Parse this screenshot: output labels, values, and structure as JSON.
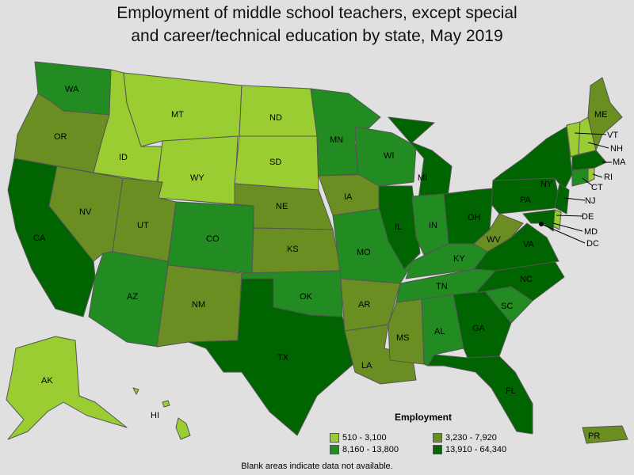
{
  "title_line1": "Employment of middle school teachers, except special",
  "title_line2": "and career/technical education by state, May 2019",
  "legend": {
    "title": "Employment",
    "items": [
      {
        "label": "510 - 3,100",
        "color": "#9acd32"
      },
      {
        "label": "3,230 - 7,920",
        "color": "#6b8e23"
      },
      {
        "label": "8,160 - 13,800",
        "color": "#228b22"
      },
      {
        "label": "13,910 - 64,340",
        "color": "#006400"
      }
    ]
  },
  "note": "Blank areas indicate data not available.",
  "states": {
    "WA": "WA",
    "OR": "OR",
    "CA": "CA",
    "ID": "ID",
    "NV": "NV",
    "MT": "MT",
    "WY": "WY",
    "UT": "UT",
    "AZ": "AZ",
    "CO": "CO",
    "NM": "NM",
    "ND": "ND",
    "SD": "SD",
    "NE": "NE",
    "KS": "KS",
    "OK": "OK",
    "TX": "TX",
    "MN": "MN",
    "IA": "IA",
    "MO": "MO",
    "AR": "AR",
    "LA": "LA",
    "WI": "WI",
    "IL": "IL",
    "MI": "MI",
    "IN": "IN",
    "OH": "OH",
    "KY": "KY",
    "TN": "TN",
    "MS": "MS",
    "AL": "AL",
    "GA": "GA",
    "FL": "FL",
    "SC": "SC",
    "NC": "NC",
    "VA": "VA",
    "WV": "WV",
    "PA": "PA",
    "NY": "NY",
    "ME": "ME",
    "VT": "VT",
    "NH": "NH",
    "MA": "MA",
    "RI": "RI",
    "CT": "CT",
    "NJ": "NJ",
    "DE": "DE",
    "MD": "MD",
    "DC": "DC",
    "AK": "AK",
    "HI": "HI",
    "PR": "PR"
  }
}
